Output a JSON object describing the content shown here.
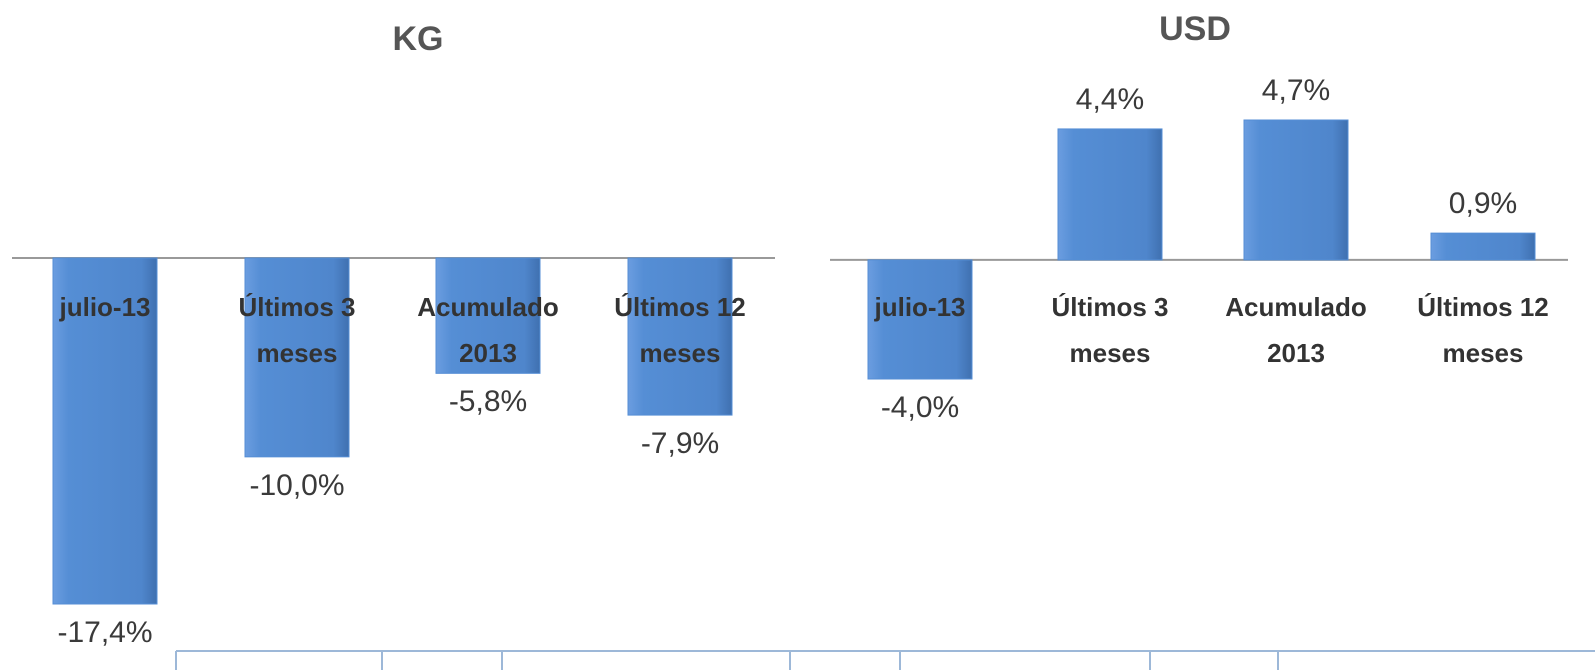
{
  "chart_data": [
    {
      "type": "bar",
      "title": "KG",
      "categories": [
        "julio-13",
        "Últimos 3 meses",
        "Acumulado 2013",
        "Últimos 12 meses"
      ],
      "values": [
        -17.4,
        -10.0,
        -5.8,
        -7.9
      ],
      "value_labels": [
        "-17,4%",
        "-10,0%",
        "-5,8%",
        "-7,9%"
      ],
      "color": "#558ed5"
    },
    {
      "type": "bar",
      "title": "USD",
      "categories": [
        "julio-13",
        "Últimos 3 meses",
        "Acumulado 2013",
        "Últimos 12 meses"
      ],
      "values": [
        -4.0,
        4.4,
        4.7,
        0.9
      ],
      "value_labels": [
        "-4,0%",
        "4,4%",
        "4,7%",
        "0,9%"
      ],
      "color": "#558ed5"
    }
  ]
}
